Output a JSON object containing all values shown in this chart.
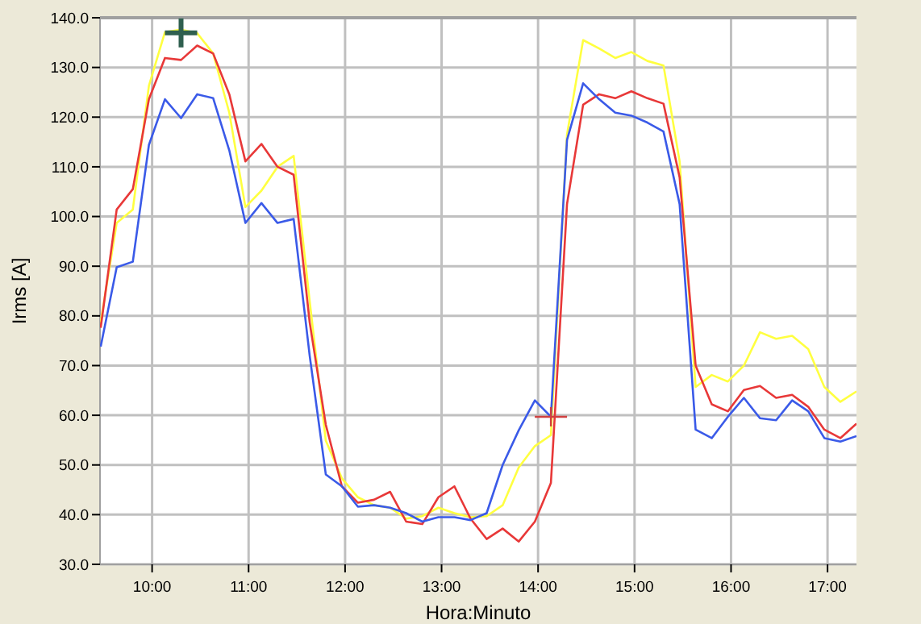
{
  "chart_data": {
    "type": "line",
    "xlabel": "Hora:Minuto",
    "ylabel": "Irms [A]",
    "x": [
      9.467,
      9.633,
      9.8,
      9.967,
      10.133,
      10.3,
      10.467,
      10.633,
      10.8,
      10.967,
      11.133,
      11.3,
      11.467,
      11.633,
      11.8,
      11.967,
      12.133,
      12.3,
      12.467,
      12.633,
      12.8,
      12.967,
      13.133,
      13.3,
      13.467,
      13.633,
      13.8,
      13.967,
      14.133,
      14.3,
      14.467,
      14.633,
      14.8,
      14.967,
      15.133,
      15.3,
      15.467,
      15.633,
      15.8,
      15.967,
      16.133,
      16.3,
      16.467,
      16.633,
      16.8,
      16.967,
      17.133,
      17.3
    ],
    "series": [
      {
        "color": "#ffff40",
        "values": [
          78.7,
          98.7,
          101.4,
          126.3,
          137.1,
          137.6,
          136.9,
          132.8,
          120.9,
          101.9,
          105.2,
          110,
          112.2,
          83,
          54.9,
          47.3,
          43.5,
          41.9,
          41.4,
          39.2,
          39.7,
          41.4,
          40.3,
          39.5,
          39.7,
          41.9,
          49.5,
          53.8,
          56,
          116.5,
          135.5,
          133.8,
          131.9,
          133.1,
          131.3,
          130.4,
          111.1,
          65.7,
          68.1,
          66.8,
          70,
          76.7,
          75.4,
          76,
          73.3,
          65.7,
          62.7,
          64.8
        ]
      },
      {
        "color": "#e83838",
        "values": [
          77.6,
          101.4,
          105.5,
          123.6,
          131.9,
          131.5,
          134.4,
          132.8,
          124.6,
          111.1,
          114.6,
          110,
          108.4,
          78.7,
          58.1,
          45.7,
          42.4,
          43,
          44.6,
          38.6,
          38.1,
          43.5,
          45.7,
          39.2,
          35.1,
          37.2,
          34.6,
          38.6,
          46.4,
          102.5,
          122.5,
          124.6,
          123.8,
          125.2,
          123.8,
          122.7,
          107.9,
          70,
          62.2,
          60.8,
          65.1,
          65.9,
          63.5,
          64.1,
          61.7,
          57.1,
          55.4,
          58.3
        ]
      },
      {
        "color": "#3a5ae8",
        "values": [
          73.8,
          89.8,
          90.9,
          114.4,
          123.6,
          119.8,
          124.6,
          123.8,
          113.3,
          98.7,
          102.7,
          98.7,
          99.5,
          72,
          48.1,
          45.7,
          41.6,
          41.9,
          41.4,
          40.3,
          38.6,
          39.5,
          39.5,
          38.9,
          40.3,
          50,
          57,
          63,
          59.7,
          115.4,
          126.8,
          123.6,
          120.9,
          120.3,
          118.9,
          117.1,
          102.5,
          57.1,
          55.4,
          59.7,
          63.5,
          59.4,
          59,
          63,
          60.8,
          55.4,
          54.7,
          55.8
        ]
      }
    ],
    "xlim": [
      9.46,
      17.3
    ],
    "xticks": [
      {
        "value": 10,
        "label": "10:00"
      },
      {
        "value": 11,
        "label": "11:00"
      },
      {
        "value": 12,
        "label": "12:00"
      },
      {
        "value": 13,
        "label": "13:00"
      },
      {
        "value": 14,
        "label": "14:00"
      },
      {
        "value": 15,
        "label": "15:00"
      },
      {
        "value": 16,
        "label": "16:00"
      },
      {
        "value": 17,
        "label": "17:00"
      }
    ],
    "ylim": [
      30,
      140
    ],
    "yticks": [
      {
        "value": 30,
        "label": "30.0"
      },
      {
        "value": 40,
        "label": "40.0"
      },
      {
        "value": 50,
        "label": "50.0"
      },
      {
        "value": 60,
        "label": "60.0"
      },
      {
        "value": 70,
        "label": "70.0"
      },
      {
        "value": 80,
        "label": "80.0"
      },
      {
        "value": 90,
        "label": "90.0"
      },
      {
        "value": 100,
        "label": "100.0"
      },
      {
        "value": 110,
        "label": "110.0"
      },
      {
        "value": 120,
        "label": "120.0"
      },
      {
        "value": 130,
        "label": "130.0"
      },
      {
        "value": 140,
        "label": "140.0"
      }
    ],
    "grid": true,
    "marker": "none",
    "line_style": "solid"
  }
}
